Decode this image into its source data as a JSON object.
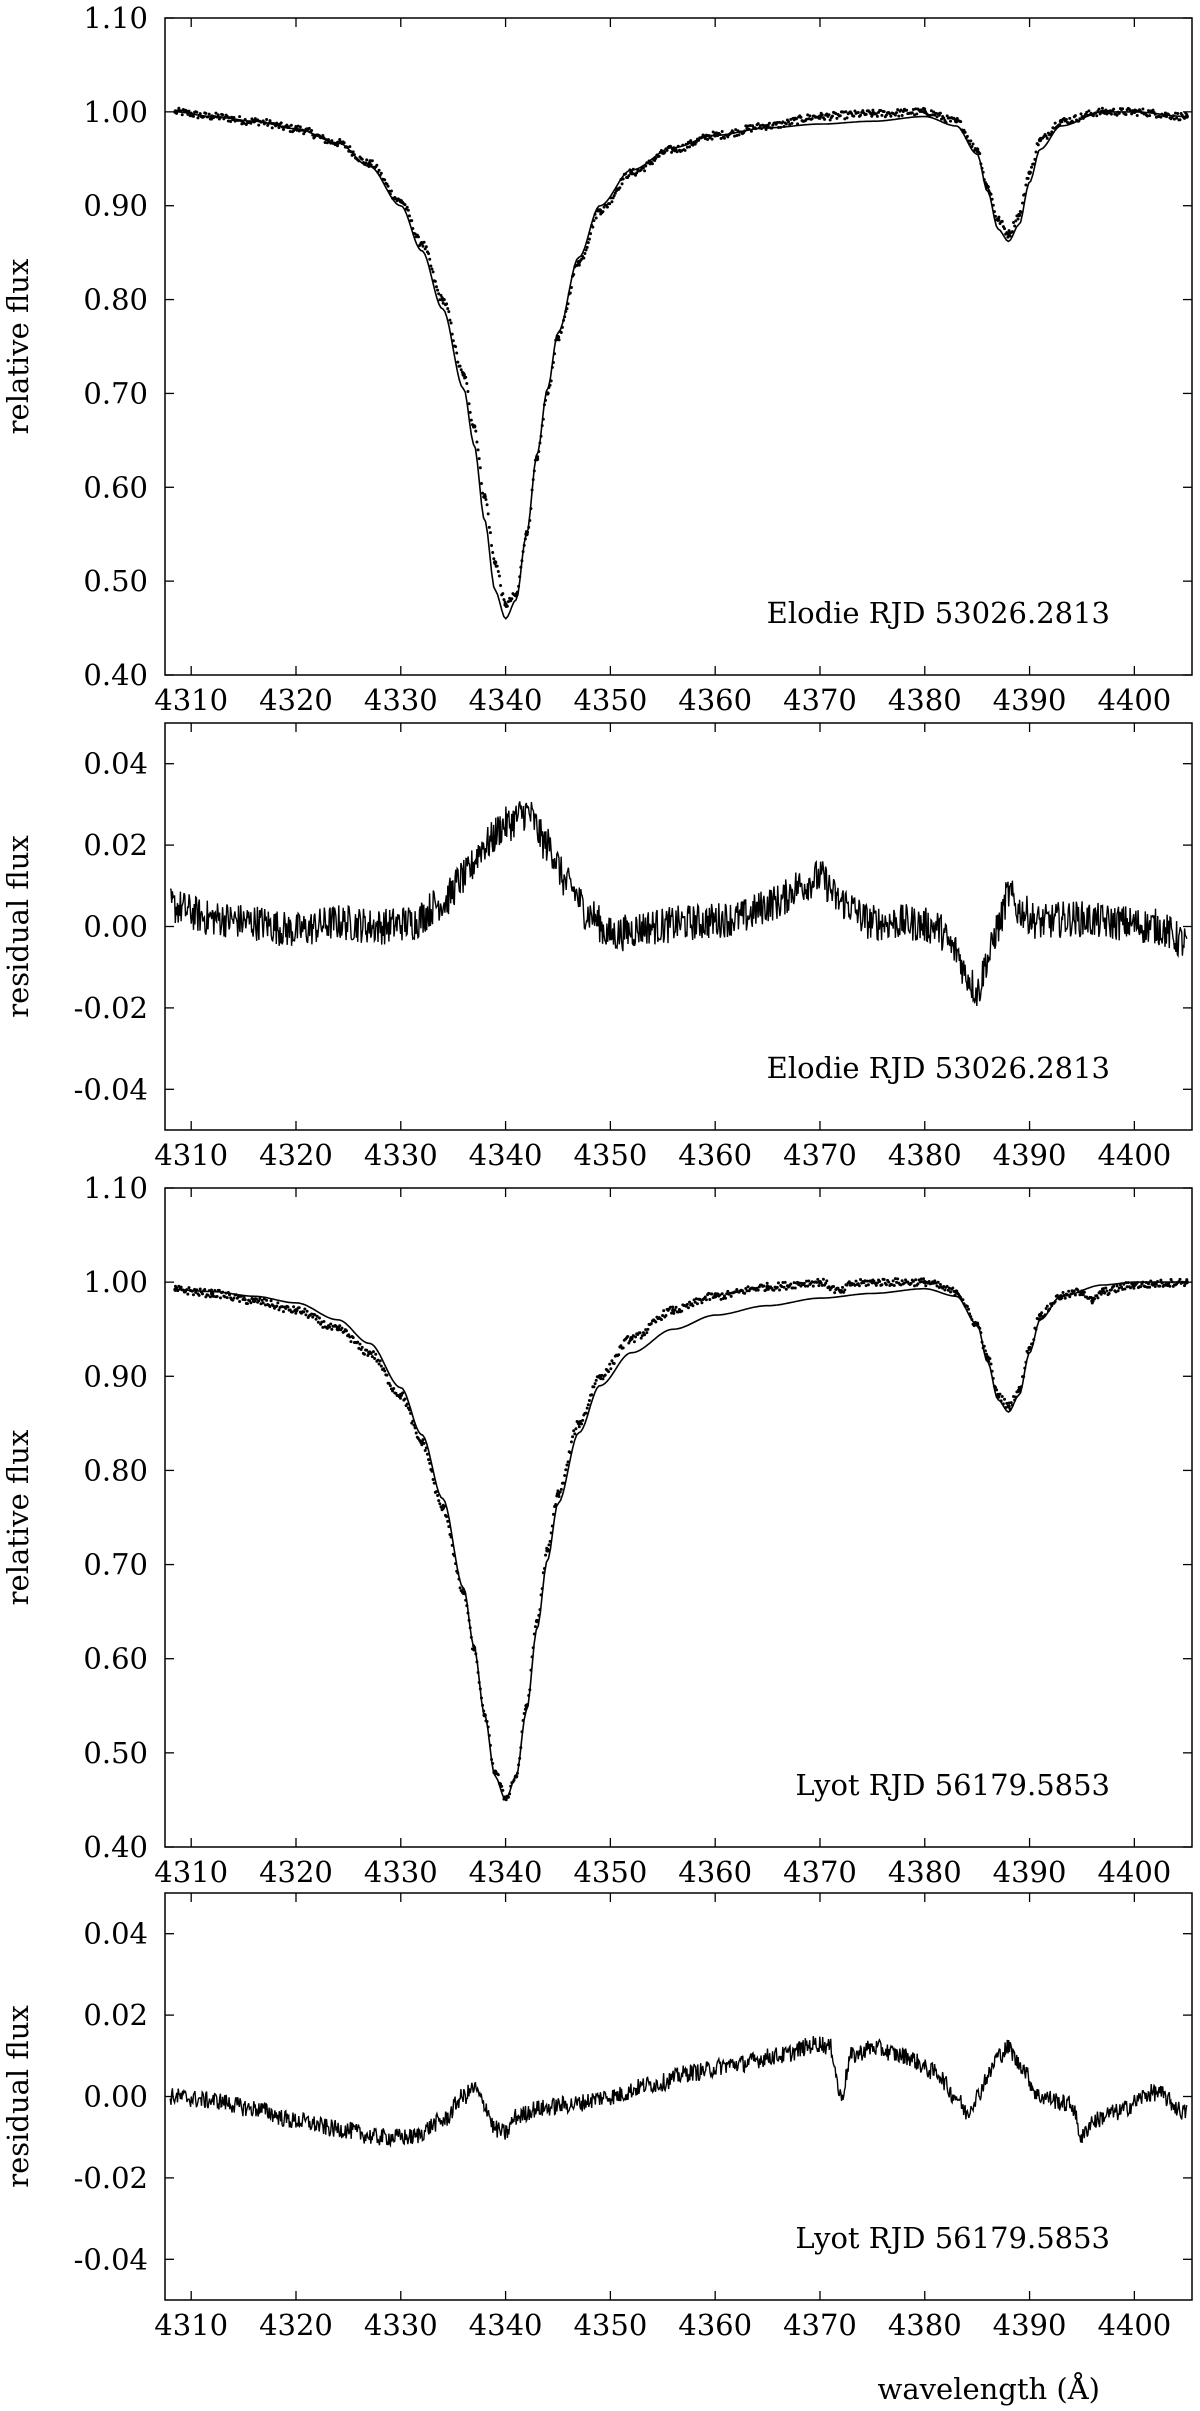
{
  "figure": {
    "xlabel": "wavelength (Å)"
  },
  "chart_data": [
    {
      "type": "line",
      "panel": "Elodie relative flux",
      "ylabel": "relative flux",
      "annotation": "Elodie  RJD 53026.2813",
      "xlim": [
        4307.5,
        4405.5
      ],
      "ylim": [
        0.4,
        1.1
      ],
      "xticks": [
        4310,
        4320,
        4330,
        4340,
        4350,
        4360,
        4370,
        4380,
        4390,
        4400
      ],
      "xtick_labels": [
        "4310",
        "4320",
        "4330",
        "4340",
        "4350",
        "4360",
        "4370",
        "4380",
        "4390",
        "4400"
      ],
      "yticks": [
        0.4,
        0.5,
        0.6,
        0.7,
        0.8,
        0.9,
        1.0,
        1.1
      ],
      "ytick_labels": [
        "0.40",
        "0.50",
        "0.60",
        "0.70",
        "0.80",
        "0.90",
        "1.00",
        "1.10"
      ],
      "grid": false,
      "series": [
        {
          "style": "points",
          "x": [
            4308.5,
            4312,
            4316,
            4320,
            4324,
            4327,
            4330,
            4332,
            4334,
            4336,
            4337,
            4338,
            4339,
            4340,
            4341,
            4342,
            4343,
            4344,
            4345,
            4347,
            4349,
            4352,
            4356,
            4360,
            4365,
            4370,
            4375,
            4380,
            4383,
            4385,
            4386,
            4387,
            4388,
            4389,
            4390,
            4391,
            4393,
            4397,
            4400,
            4405
          ],
          "y": [
            1.0,
            0.995,
            0.99,
            0.982,
            0.967,
            0.945,
            0.905,
            0.86,
            0.8,
            0.72,
            0.665,
            0.59,
            0.52,
            0.475,
            0.485,
            0.55,
            0.63,
            0.7,
            0.76,
            0.84,
            0.895,
            0.935,
            0.96,
            0.975,
            0.985,
            0.995,
            0.998,
            1.0,
            0.99,
            0.96,
            0.92,
            0.885,
            0.87,
            0.89,
            0.935,
            0.97,
            0.99,
            1.0,
            1.0,
            0.995
          ]
        },
        {
          "style": "line",
          "x": [
            4308.5,
            4312,
            4316,
            4320,
            4324,
            4327,
            4330,
            4332,
            4334,
            4336,
            4337,
            4338,
            4339,
            4340,
            4341,
            4342,
            4343,
            4344,
            4345,
            4347,
            4349,
            4352,
            4356,
            4360,
            4365,
            4370,
            4375,
            4380,
            4383,
            4385,
            4386,
            4387,
            4388,
            4389,
            4390,
            4391,
            4393,
            4397,
            4400,
            4405
          ],
          "y": [
            1.0,
            0.995,
            0.99,
            0.982,
            0.967,
            0.942,
            0.9,
            0.852,
            0.79,
            0.705,
            0.645,
            0.565,
            0.49,
            0.46,
            0.48,
            0.55,
            0.635,
            0.705,
            0.765,
            0.845,
            0.9,
            0.938,
            0.962,
            0.975,
            0.983,
            0.987,
            0.99,
            0.995,
            0.985,
            0.955,
            0.915,
            0.875,
            0.862,
            0.88,
            0.925,
            0.96,
            0.985,
            1.0,
            1.0,
            0.995
          ]
        }
      ]
    },
    {
      "type": "line",
      "panel": "Elodie residual flux",
      "ylabel": "residual flux",
      "annotation": "Elodie  RJD 53026.2813",
      "xlim": [
        4307.5,
        4405.5
      ],
      "ylim": [
        -0.05,
        0.05
      ],
      "xticks": [
        4310,
        4320,
        4330,
        4340,
        4350,
        4360,
        4370,
        4380,
        4390,
        4400
      ],
      "xtick_labels": [
        "4310",
        "4320",
        "4330",
        "4340",
        "4350",
        "4360",
        "4370",
        "4380",
        "4390",
        "4400"
      ],
      "yticks": [
        -0.04,
        -0.02,
        0.0,
        0.02,
        0.04
      ],
      "ytick_labels": [
        "-0.04",
        "-0.02",
        "0.00",
        "0.02",
        "0.04"
      ],
      "grid": false,
      "series": [
        {
          "style": "line",
          "x": [
            4308,
            4312,
            4316,
            4320,
            4324,
            4328,
            4331,
            4334,
            4336,
            4338,
            4340,
            4342,
            4344,
            4346,
            4348,
            4350,
            4354,
            4358,
            4362,
            4366,
            4368,
            4370,
            4372,
            4375,
            4378,
            4381,
            4383,
            4384,
            4385,
            4386,
            4387,
            4388,
            4389,
            4391,
            4394,
            4398,
            4402,
            4405
          ],
          "y": [
            0.005,
            0.002,
            0.001,
            -0.001,
            0.001,
            0.0,
            0.001,
            0.006,
            0.012,
            0.02,
            0.025,
            0.028,
            0.02,
            0.01,
            0.003,
            -0.002,
            0.0,
            0.001,
            0.002,
            0.006,
            0.01,
            0.012,
            0.006,
            0.001,
            0.001,
            0.0,
            -0.006,
            -0.012,
            -0.016,
            -0.008,
            0.0,
            0.008,
            0.004,
            0.001,
            0.002,
            0.001,
            0.0,
            -0.004
          ],
          "noise": 0.0045
        }
      ]
    },
    {
      "type": "line",
      "panel": "Lyot relative flux",
      "ylabel": "relative flux",
      "annotation": "Lyot  RJD 56179.5853",
      "xlim": [
        4307.5,
        4405.5
      ],
      "ylim": [
        0.4,
        1.1
      ],
      "xticks": [
        4310,
        4320,
        4330,
        4340,
        4350,
        4360,
        4370,
        4380,
        4390,
        4400
      ],
      "xtick_labels": [
        "4310",
        "4320",
        "4330",
        "4340",
        "4350",
        "4360",
        "4370",
        "4380",
        "4390",
        "4400"
      ],
      "yticks": [
        0.4,
        0.5,
        0.6,
        0.7,
        0.8,
        0.9,
        1.0,
        1.1
      ],
      "ytick_labels": [
        "0.40",
        "0.50",
        "0.60",
        "0.70",
        "0.80",
        "0.90",
        "1.00",
        "1.10"
      ],
      "grid": false,
      "series": [
        {
          "style": "points",
          "x": [
            4308.5,
            4312,
            4316,
            4320,
            4324,
            4327,
            4330,
            4332,
            4334,
            4336,
            4337,
            4338,
            4339,
            4340,
            4341,
            4342,
            4343,
            4344,
            4345,
            4347,
            4349,
            4352,
            4356,
            4360,
            4365,
            4370,
            4372,
            4373,
            4375,
            4380,
            4383,
            4385,
            4386,
            4387,
            4388,
            4389,
            4390,
            4391,
            4393,
            4395,
            4396,
            4397,
            4400,
            4405
          ],
          "y": [
            0.992,
            0.988,
            0.98,
            0.97,
            0.95,
            0.925,
            0.88,
            0.83,
            0.76,
            0.67,
            0.61,
            0.54,
            0.48,
            0.452,
            0.475,
            0.55,
            0.64,
            0.715,
            0.775,
            0.85,
            0.9,
            0.94,
            0.97,
            0.985,
            0.995,
            1.0,
            0.99,
            0.998,
            1.0,
            1.0,
            0.99,
            0.955,
            0.92,
            0.88,
            0.868,
            0.885,
            0.93,
            0.965,
            0.985,
            0.99,
            0.98,
            0.99,
            0.997,
            1.0
          ]
        },
        {
          "style": "line",
          "x": [
            4308.5,
            4312,
            4316,
            4320,
            4324,
            4327,
            4330,
            4332,
            4334,
            4336,
            4337,
            4338,
            4339,
            4340,
            4341,
            4342,
            4343,
            4344,
            4345,
            4347,
            4349,
            4352,
            4356,
            4360,
            4365,
            4370,
            4375,
            4380,
            4383,
            4385,
            4386,
            4387,
            4388,
            4389,
            4390,
            4391,
            4393,
            4397,
            4400,
            4405
          ],
          "y": [
            0.992,
            0.99,
            0.985,
            0.978,
            0.96,
            0.935,
            0.888,
            0.838,
            0.77,
            0.675,
            0.612,
            0.54,
            0.475,
            0.45,
            0.475,
            0.545,
            0.632,
            0.705,
            0.765,
            0.84,
            0.89,
            0.925,
            0.95,
            0.965,
            0.975,
            0.983,
            0.988,
            0.993,
            0.985,
            0.955,
            0.915,
            0.875,
            0.862,
            0.88,
            0.925,
            0.96,
            0.985,
            0.997,
            1.0,
            1.0
          ]
        }
      ]
    },
    {
      "type": "line",
      "panel": "Lyot residual flux",
      "ylabel": "residual flux",
      "annotation": "Lyot  RJD 56179.5853",
      "xlim": [
        4307.5,
        4405.5
      ],
      "ylim": [
        -0.05,
        0.05
      ],
      "xticks": [
        4310,
        4320,
        4330,
        4340,
        4350,
        4360,
        4370,
        4380,
        4390,
        4400
      ],
      "xtick_labels": [
        "4310",
        "4320",
        "4330",
        "4340",
        "4350",
        "4360",
        "4370",
        "4380",
        "4390",
        "4400"
      ],
      "yticks": [
        -0.04,
        -0.02,
        0.0,
        0.02,
        0.04
      ],
      "ytick_labels": [
        "-0.04",
        "-0.02",
        "0.00",
        "0.02",
        "0.04"
      ],
      "grid": false,
      "series": [
        {
          "style": "line",
          "x": [
            4308,
            4312,
            4316,
            4320,
            4324,
            4328,
            4331,
            4334,
            4336,
            4337,
            4338,
            4339,
            4340,
            4341,
            4343,
            4346,
            4350,
            4354,
            4358,
            4362,
            4366,
            4370,
            4371,
            4372,
            4373,
            4375,
            4378,
            4381,
            4383,
            4384,
            4385,
            4386,
            4387,
            4388,
            4389,
            4391,
            4394,
            4395,
            4396,
            4398,
            4402,
            4405
          ],
          "y": [
            0.0,
            -0.001,
            -0.003,
            -0.006,
            -0.008,
            -0.01,
            -0.01,
            -0.006,
            0.0,
            0.002,
            -0.002,
            -0.008,
            -0.009,
            -0.005,
            -0.003,
            -0.002,
            0.0,
            0.003,
            0.006,
            0.008,
            0.01,
            0.013,
            0.012,
            0.0,
            0.01,
            0.012,
            0.01,
            0.006,
            0.0,
            -0.004,
            0.0,
            0.005,
            0.01,
            0.012,
            0.008,
            0.0,
            -0.002,
            -0.01,
            -0.006,
            -0.004,
            0.001,
            -0.004
          ],
          "noise": 0.0022
        }
      ]
    }
  ]
}
